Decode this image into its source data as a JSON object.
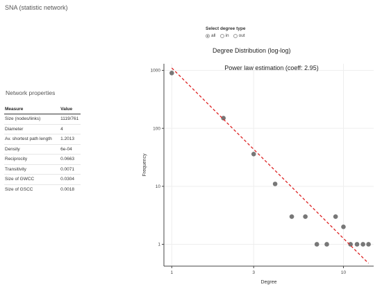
{
  "app": {
    "title": "SNA (statistic network)"
  },
  "degree_select": {
    "label": "Select degree type",
    "options": [
      {
        "label": "all",
        "selected": true
      },
      {
        "label": "in",
        "selected": false
      },
      {
        "label": "out",
        "selected": false
      }
    ]
  },
  "network_properties": {
    "title": "Network properties",
    "columns": [
      "Measure",
      "Value"
    ],
    "rows": [
      {
        "measure": "Size (nodes/links)",
        "value": "1119/761"
      },
      {
        "measure": "Diameter",
        "value": "4"
      },
      {
        "measure": "Av. shortest path length",
        "value": "1.2013"
      },
      {
        "measure": "Density",
        "value": "6e-04"
      },
      {
        "measure": "Reciprocity",
        "value": "0.0663"
      },
      {
        "measure": "Transitivity",
        "value": "0.0071"
      },
      {
        "measure": "Size of GWCC",
        "value": "0.0304"
      },
      {
        "measure": "Size of GSCC",
        "value": "0.0018"
      }
    ]
  },
  "chart_data": {
    "type": "scatter",
    "title": "Degree Distribution (log-log)",
    "annotation": "Power law estimation (coeff: 2.95)",
    "xlabel": "Degree",
    "ylabel": "Frequency",
    "x_scale": "log",
    "y_scale": "log",
    "xlim": [
      0.9,
      15
    ],
    "ylim": [
      0.42,
      1300
    ],
    "x_ticks": [
      1,
      3,
      10
    ],
    "y_ticks": [
      1,
      10,
      100,
      1000
    ],
    "grid": true,
    "points": [
      {
        "x": 1,
        "y": 900
      },
      {
        "x": 2,
        "y": 150
      },
      {
        "x": 3,
        "y": 36
      },
      {
        "x": 4,
        "y": 11
      },
      {
        "x": 5,
        "y": 3
      },
      {
        "x": 6,
        "y": 3
      },
      {
        "x": 7,
        "y": 1
      },
      {
        "x": 8,
        "y": 1
      },
      {
        "x": 9,
        "y": 3
      },
      {
        "x": 10,
        "y": 2
      },
      {
        "x": 11,
        "y": 1
      },
      {
        "x": 12,
        "y": 1
      },
      {
        "x": 13,
        "y": 1
      },
      {
        "x": 14,
        "y": 1
      }
    ],
    "fit_line": {
      "x": [
        1,
        14
      ],
      "y": [
        1100,
        0.47
      ]
    },
    "colors": {
      "points": "#777777",
      "fit_line": "#dd2222",
      "grid": "#eeeeee",
      "axis": "#444444"
    }
  }
}
